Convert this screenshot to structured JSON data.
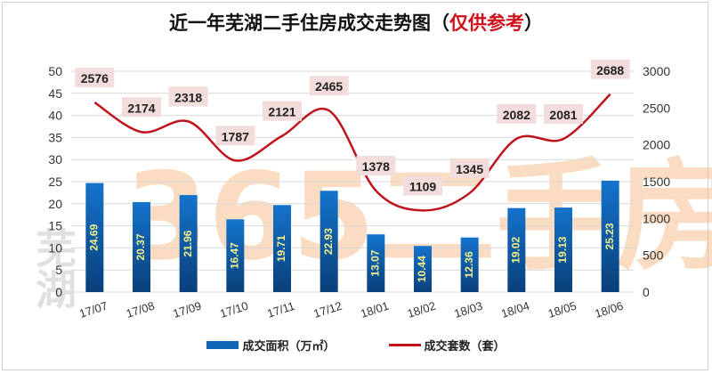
{
  "title": {
    "main": "近一年芜湖二手住房成交走势图（",
    "note": "仅供参考",
    "close": "）"
  },
  "watermark": "芜湖365二手房",
  "chart_data": {
    "type": "bar+line",
    "categories": [
      "17/07",
      "17/08",
      "17/09",
      "17/10",
      "17/11",
      "17/12",
      "18/01",
      "18/02",
      "18/03",
      "18/04",
      "18/05",
      "18/06"
    ],
    "series": [
      {
        "name": "成交面积（万㎡）",
        "type": "bar",
        "axis": "left",
        "color": "#1166b8",
        "values": [
          24.69,
          20.37,
          21.96,
          16.47,
          19.71,
          22.93,
          13.07,
          10.44,
          12.36,
          19.02,
          19.13,
          25.23
        ],
        "labels": [
          "24.69",
          "20.37",
          "21.96",
          "16.47",
          "19.71",
          "22.93",
          "13.07",
          "10.44",
          "12.36",
          "19.02",
          "19.13",
          "25.23"
        ]
      },
      {
        "name": "成交套数（套）",
        "type": "line",
        "axis": "right",
        "color": "#c0141c",
        "values": [
          2576,
          2174,
          2318,
          1787,
          2121,
          2465,
          1378,
          1109,
          1345,
          2082,
          2081,
          2688
        ],
        "labels": [
          "2576",
          "2174",
          "2318",
          "1787",
          "2121",
          "2465",
          "1378",
          "1109",
          "1345",
          "2082",
          "2081",
          "2688"
        ]
      }
    ],
    "y_left": {
      "range": [
        0,
        50
      ],
      "ticks": [
        "0",
        "5",
        "10",
        "15",
        "20",
        "25",
        "30",
        "35",
        "40",
        "45",
        "50"
      ]
    },
    "y_right": {
      "range": [
        0,
        3000
      ],
      "ticks": [
        "0",
        "500",
        "1000",
        "1500",
        "2000",
        "2500",
        "3000"
      ]
    },
    "grid": true,
    "legend": "bottom",
    "bar_label_color": "#f3f08a",
    "line_label_bg": "#f2dcdc"
  }
}
